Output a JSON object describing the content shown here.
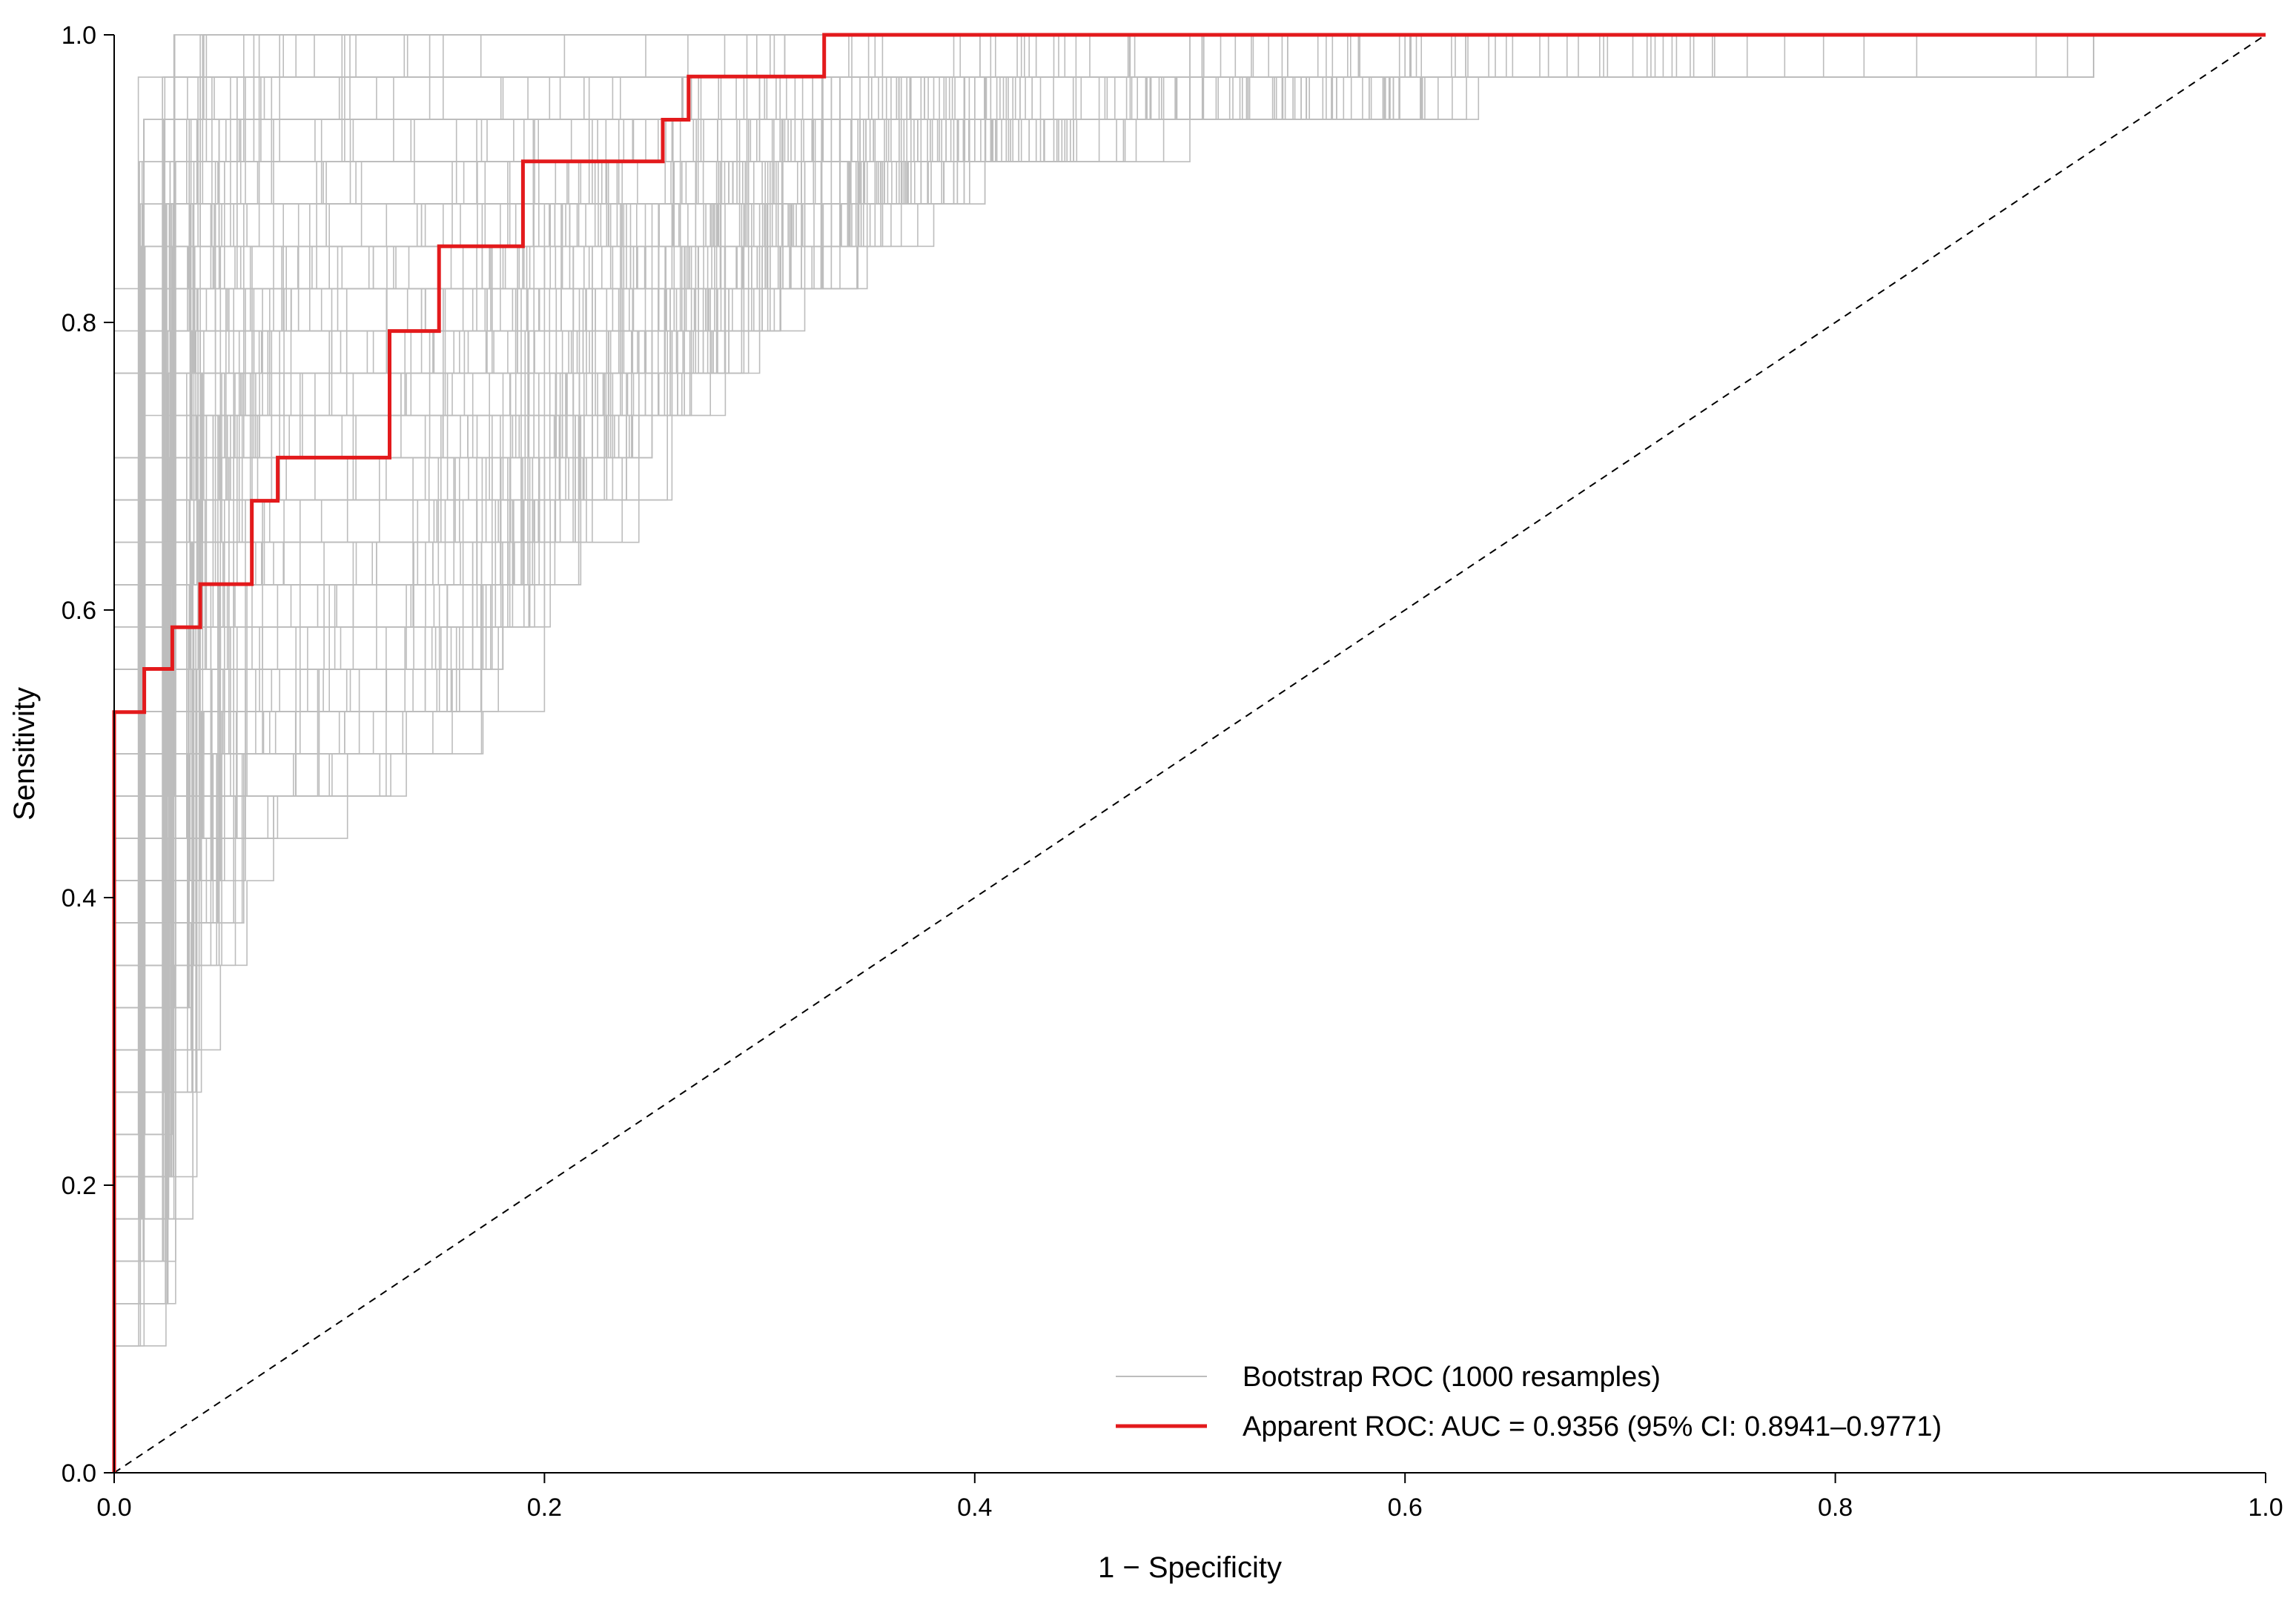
{
  "chart_data": {
    "type": "line",
    "xlabel": "1 − Specificity",
    "ylabel": "Sensitivity",
    "xlim": [
      0,
      1
    ],
    "ylim": [
      0,
      1
    ],
    "x_ticks": [
      "0.0",
      "0.2",
      "0.4",
      "0.6",
      "0.8",
      "1.0"
    ],
    "y_ticks": [
      "0.0",
      "0.2",
      "0.4",
      "0.6",
      "0.8",
      "1.0"
    ],
    "grid": false,
    "legend_position": "bottom-right",
    "reference_line": {
      "style": "dashed",
      "color": "#000000",
      "from": [
        0,
        0
      ],
      "to": [
        1,
        1
      ]
    },
    "series": [
      {
        "name": "Bootstrap ROC (1000 resamples)",
        "color": "#bdbdbd",
        "kind": "bootstrap-band",
        "resamples": 1000,
        "envelope_x": [
          0.0,
          0.01,
          0.02,
          0.03,
          0.05,
          0.07,
          0.1,
          0.13,
          0.16,
          0.2,
          0.25,
          0.3,
          0.35,
          0.4,
          0.5,
          0.6,
          0.72,
          0.92
        ],
        "envelope_upper": [
          0.93,
          0.96,
          0.98,
          0.99,
          1.0,
          1.0,
          1.0,
          1.0,
          1.0,
          1.0,
          1.0,
          1.0,
          1.0,
          1.0,
          1.0,
          1.0,
          1.0,
          1.0
        ],
        "envelope_lower": [
          0.0,
          0.05,
          0.2,
          0.32,
          0.38,
          0.4,
          0.4,
          0.41,
          0.5,
          0.62,
          0.72,
          0.8,
          0.86,
          0.9,
          0.93,
          0.95,
          0.96,
          0.96
        ]
      },
      {
        "name": "Apparent ROC: AUC = 0.9356 (95% CI: 0.8941–0.9771)",
        "color": "#e31a1c",
        "kind": "step",
        "points": [
          [
            0.0,
            0.0
          ],
          [
            0.0,
            0.529
          ],
          [
            0.014,
            0.529
          ],
          [
            0.014,
            0.559
          ],
          [
            0.027,
            0.559
          ],
          [
            0.027,
            0.588
          ],
          [
            0.04,
            0.588
          ],
          [
            0.04,
            0.618
          ],
          [
            0.064,
            0.618
          ],
          [
            0.064,
            0.676
          ],
          [
            0.076,
            0.676
          ],
          [
            0.076,
            0.706
          ],
          [
            0.128,
            0.706
          ],
          [
            0.128,
            0.794
          ],
          [
            0.151,
            0.794
          ],
          [
            0.151,
            0.853
          ],
          [
            0.19,
            0.853
          ],
          [
            0.19,
            0.912
          ],
          [
            0.255,
            0.912
          ],
          [
            0.255,
            0.941
          ],
          [
            0.267,
            0.941
          ],
          [
            0.267,
            0.971
          ],
          [
            0.33,
            0.971
          ],
          [
            0.33,
            1.0
          ],
          [
            1.0,
            1.0
          ]
        ]
      }
    ]
  }
}
